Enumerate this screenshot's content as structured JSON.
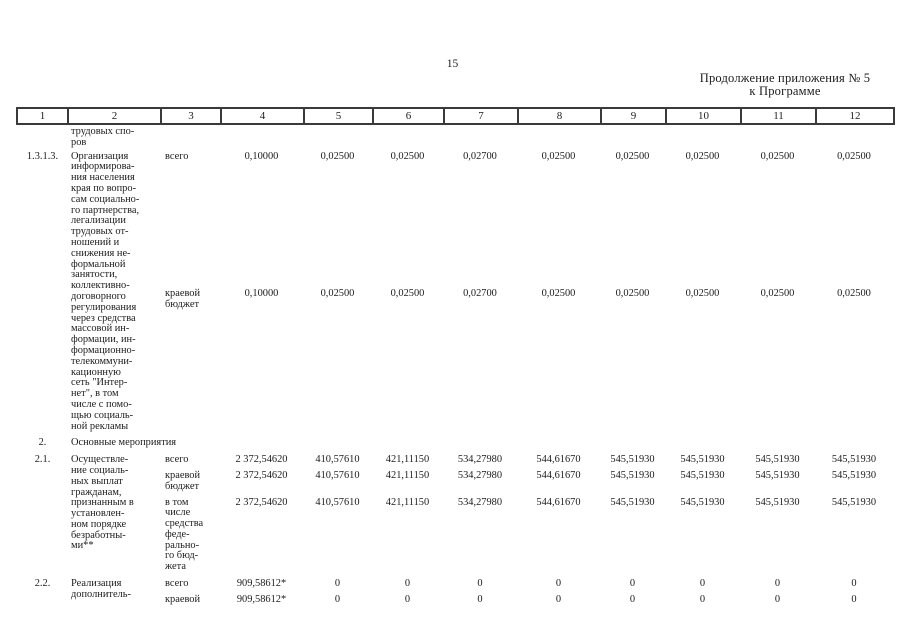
{
  "page": {
    "number": "15",
    "continuation_note": "Продолжение приложения № 5\nк Программе"
  },
  "table": {
    "column_headers": [
      "1",
      "2",
      "3",
      "4",
      "5",
      "6",
      "7",
      "8",
      "9",
      "10",
      "11",
      "12"
    ],
    "rows": [
      {
        "type": "carryover",
        "num": "",
        "activity": "трудовых спо-\nров",
        "funding": []
      },
      {
        "type": "item",
        "num": "1.3.1.3.",
        "activity": "Организация\nинформирова-\nния населения\nкрая по вопро-\nсам социально-\nго партнерства,\nлегализации\nтрудовых от-\nношений и\nснижения не-\nформальной\nзанятости,\nколлективно-\nдоговорного\nрегулирования\nчерез средства\nмассовой ин-\nформации, ин-\nформационно-\nтелекоммуни-\nкационную\nсеть \"Интер-\nнет\", в том\nчисле с помо-\nщью социаль-\nной рекламы",
        "funding": [
          {
            "source": "всего",
            "values": [
              "0,10000",
              "0,02500",
              "0,02500",
              "0,02700",
              "0,02500",
              "0,02500",
              "0,02500",
              "0,02500",
              "0,02500"
            ]
          },
          {
            "source": "краевой\nбюджет",
            "values": [
              "0,10000",
              "0,02500",
              "0,02500",
              "0,02700",
              "0,02500",
              "0,02500",
              "0,02500",
              "0,02500",
              "0,02500"
            ]
          }
        ]
      },
      {
        "type": "section",
        "num": "2.",
        "activity": "Основные мероприятия",
        "funding": []
      },
      {
        "type": "item21",
        "num": "2.1.",
        "activity": "Осуществле-\nние социаль-\nных выплат\nгражданам,\nпризнанным в\nустановлен-\nном порядке\nбезработны-\nми**",
        "funding": [
          {
            "source": "всего",
            "values": [
              "2 372,54620",
              "410,57610",
              "421,11150",
              "534,27980",
              "544,61670",
              "545,51930",
              "545,51930",
              "545,51930",
              "545,51930"
            ]
          },
          {
            "source": "краевой\nбюджет",
            "values": [
              "2 372,54620",
              "410,57610",
              "421,11150",
              "534,27980",
              "544,61670",
              "545,51930",
              "545,51930",
              "545,51930",
              "545,51930"
            ]
          },
          {
            "source": "в том\nчисле\nсредства\nфеде-\nрально-\nго бюд-\nжета",
            "values": [
              "2 372,54620",
              "410,57610",
              "421,11150",
              "534,27980",
              "544,61670",
              "545,51930",
              "545,51930",
              "545,51930",
              "545,51930"
            ]
          }
        ]
      },
      {
        "type": "item22",
        "num": "2.2.",
        "activity": "Реализация\nдополнитель-",
        "funding": [
          {
            "source": "всего",
            "values": [
              "909,58612*",
              "0",
              "0",
              "0",
              "0",
              "0",
              "0",
              "0",
              "0"
            ]
          },
          {
            "source": "краевой",
            "values": [
              "909,58612*",
              "0",
              "0",
              "0",
              "0",
              "0",
              "0",
              "0",
              "0"
            ]
          }
        ]
      }
    ]
  }
}
